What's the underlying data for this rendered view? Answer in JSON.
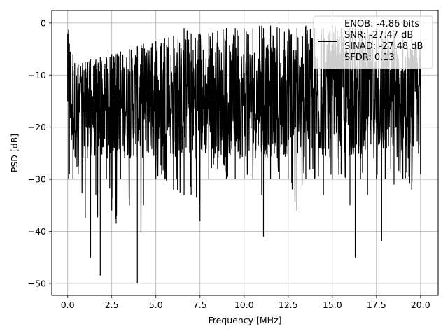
{
  "chart_data": {
    "type": "line",
    "xlabel": "Frequency [MHz]",
    "ylabel": "PSD [dB]",
    "xlim": [
      -0.9,
      21.0
    ],
    "ylim": [
      -52.3,
      2.4
    ],
    "xticks": [
      0.0,
      2.5,
      5.0,
      7.5,
      10.0,
      12.5,
      15.0,
      17.5,
      20.0
    ],
    "xtick_labels": [
      "0.0",
      "2.5",
      "5.0",
      "7.5",
      "10.0",
      "12.5",
      "15.0",
      "17.5",
      "20.0"
    ],
    "yticks": [
      0,
      -10,
      -20,
      -30,
      -40,
      -50
    ],
    "ytick_labels": [
      "0",
      "−10",
      "−20",
      "−30",
      "−40",
      "−50"
    ],
    "grid": true,
    "legend_position": "top-right",
    "series": [
      {
        "legend": [
          "ENOB: -4.86 bits",
          "SNR: -27.47 dB",
          "SINAD: -27.48 dB",
          "SFDR: 0.13"
        ],
        "color": "#000000",
        "x_range": [
          0.0,
          20.0
        ],
        "envelope_x": [
          0.0,
          0.05,
          0.1,
          0.3,
          0.6,
          1.0,
          1.3,
          1.6,
          1.85,
          2.2,
          2.5,
          2.75,
          3.0,
          3.5,
          3.95,
          4.3,
          5.0,
          5.5,
          6.0,
          6.6,
          7.0,
          7.5,
          8.0,
          8.5,
          9.0,
          9.5,
          10.0,
          10.5,
          11.0,
          11.1,
          11.5,
          12.0,
          12.5,
          13.0,
          13.5,
          14.0,
          14.5,
          15.0,
          15.5,
          16.0,
          16.3,
          16.6,
          17.0,
          17.5,
          17.8,
          18.0,
          18.5,
          19.0,
          19.5,
          20.0
        ],
        "envelope_max": [
          -2.0,
          -1.3,
          -4.0,
          -6.0,
          -8.0,
          -7.5,
          -7.0,
          -7.0,
          -6.5,
          -6.5,
          -6.0,
          -6.0,
          -5.5,
          -5.0,
          -4.5,
          -4.0,
          -3.5,
          -3.0,
          -2.5,
          -1.0,
          -2.0,
          -2.0,
          -2.0,
          -1.5,
          -1.0,
          -1.0,
          -1.0,
          -1.0,
          -0.5,
          -1.0,
          -0.5,
          -1.0,
          -1.0,
          -1.0,
          -0.5,
          -1.0,
          -1.0,
          -0.5,
          -1.0,
          -1.0,
          -1.0,
          -1.0,
          -1.0,
          -1.0,
          -1.5,
          -1.5,
          -2.0,
          -2.0,
          -3.0,
          -3.5
        ],
        "envelope_min": [
          -15.0,
          -30.0,
          -29.0,
          -30.0,
          -29.0,
          -37.5,
          -45.0,
          -33.0,
          -48.5,
          -30.0,
          -36.0,
          -38.5,
          -30.0,
          -35.0,
          -50.0,
          -35.0,
          -30.0,
          -30.0,
          -32.0,
          -33.0,
          -33.0,
          -38.0,
          -30.0,
          -28.0,
          -30.0,
          -30.0,
          -30.0,
          -30.0,
          -33.0,
          -41.0,
          -30.0,
          -30.0,
          -30.0,
          -36.0,
          -30.0,
          -30.0,
          -33.0,
          -30.0,
          -29.0,
          -35.0,
          -45.0,
          -30.0,
          -33.0,
          -30.0,
          -41.8,
          -30.0,
          -31.0,
          -30.0,
          -32.0,
          -29.0
        ],
        "typical_band": [
          -26.0,
          -4.0
        ]
      }
    ]
  }
}
